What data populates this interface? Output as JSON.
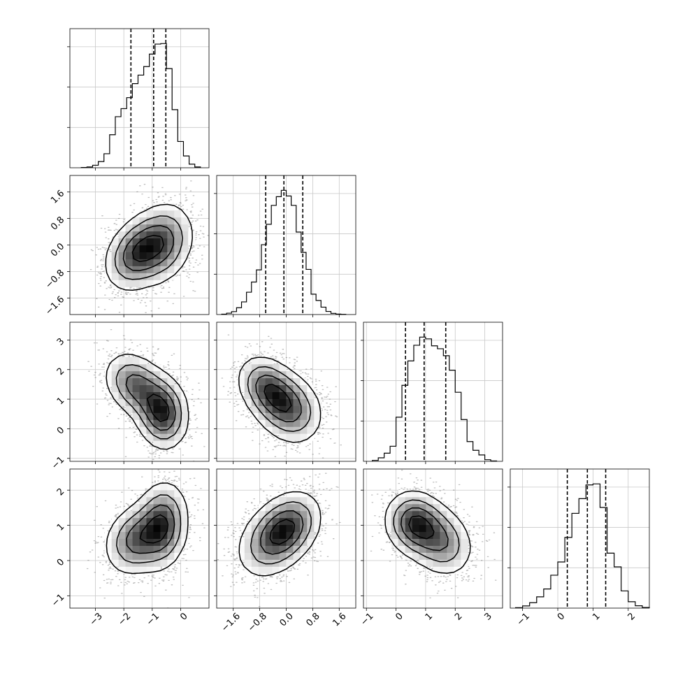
{
  "chart_data": {
    "type": "corner",
    "variables": 4,
    "grid": true,
    "quantiles": [
      0.16,
      0.5,
      0.84
    ],
    "axes_ranges": [
      [
        -3.9,
        1.0
      ],
      [
        -2.1,
        2.1
      ],
      [
        -1.1,
        3.6
      ],
      [
        -1.35,
        2.6
      ]
    ],
    "tick_values": [
      [
        -3,
        -2,
        -1,
        0
      ],
      [
        -1.6,
        -0.8,
        0.0,
        0.8,
        1.6
      ],
      [
        -1,
        0,
        1,
        2,
        3
      ],
      [
        -1,
        0,
        1,
        2
      ]
    ],
    "tick_labels": [
      [
        "−3",
        "−2",
        "−1",
        "0"
      ],
      [
        "−1.6",
        "−0.8",
        "0.0",
        "0.8",
        "1.6"
      ],
      [
        "−1",
        "0",
        "1",
        "2",
        "3"
      ],
      [
        "−1",
        "0",
        "1",
        "2"
      ]
    ],
    "histograms": [
      {
        "var": 0,
        "bin_edges": [
          -3.5,
          -3.3,
          -3.1,
          -2.9,
          -2.7,
          -2.5,
          -2.3,
          -2.1,
          -1.9,
          -1.7,
          -1.5,
          -1.3,
          -1.1,
          -0.9,
          -0.7,
          -0.5,
          -0.3,
          -0.1,
          0.1,
          0.3,
          0.5,
          0.7
        ],
        "counts": [
          3,
          8,
          25,
          62,
          140,
          330,
          510,
          590,
          700,
          840,
          925,
          1010,
          1135,
          1235,
          1240,
          990,
          580,
          262,
          118,
          36,
          8
        ],
        "quantile_values": [
          -1.75,
          -0.95,
          -0.52
        ]
      },
      {
        "var": 1,
        "bin_edges": [
          -1.95,
          -1.8,
          -1.65,
          -1.5,
          -1.35,
          -1.2,
          -1.05,
          -0.9,
          -0.75,
          -0.6,
          -0.45,
          -0.3,
          -0.15,
          0.0,
          0.15,
          0.3,
          0.45,
          0.6,
          0.75,
          0.9,
          1.05,
          1.2,
          1.35,
          1.5,
          1.65,
          1.8
        ],
        "counts": [
          4,
          14,
          30,
          70,
          130,
          230,
          335,
          460,
          720,
          930,
          1125,
          1215,
          1280,
          1222,
          1125,
          850,
          640,
          465,
          210,
          145,
          76,
          32,
          12,
          5,
          2
        ],
        "quantile_values": [
          -0.62,
          -0.07,
          0.5
        ]
      },
      {
        "var": 2,
        "bin_edges": [
          -0.8,
          -0.6,
          -0.4,
          -0.2,
          0.0,
          0.2,
          0.4,
          0.6,
          0.8,
          1.0,
          1.2,
          1.4,
          1.6,
          1.8,
          2.0,
          2.2,
          2.4,
          2.6,
          2.8,
          3.0,
          3.2,
          3.4
        ],
        "counts": [
          8,
          30,
          70,
          130,
          380,
          655,
          865,
          1000,
          1070,
          1055,
          995,
          970,
          910,
          785,
          595,
          360,
          170,
          95,
          55,
          14,
          3
        ],
        "quantile_values": [
          0.32,
          0.95,
          1.68
        ]
      },
      {
        "var": 3,
        "bin_edges": [
          -1.2,
          -1.0,
          -0.8,
          -0.6,
          -0.4,
          -0.2,
          0.0,
          0.2,
          0.4,
          0.6,
          0.8,
          1.0,
          1.2,
          1.4,
          1.6,
          1.8,
          2.0,
          2.2,
          2.4,
          2.6
        ],
        "counts": [
          5,
          22,
          55,
          115,
          195,
          335,
          470,
          720,
          965,
          1115,
          1255,
          1265,
          1025,
          560,
          420,
          175,
          65,
          24,
          6
        ],
        "quantile_values": [
          0.27,
          0.84,
          1.36
        ]
      }
    ],
    "pairs": [
      {
        "x": 0,
        "y": 1,
        "components": [
          {
            "cx": -0.65,
            "cy": 0.05,
            "sx": 0.55,
            "sy": 0.6,
            "rho": 0.2,
            "w": 0.5
          },
          {
            "cx": -1.55,
            "cy": -0.25,
            "sx": 0.55,
            "sy": 0.55,
            "rho": 0.3,
            "w": 0.5
          }
        ]
      },
      {
        "x": 0,
        "y": 2,
        "components": [
          {
            "cx": -0.65,
            "cy": 0.55,
            "sx": 0.45,
            "sy": 0.6,
            "rho": -0.1,
            "w": 0.55
          },
          {
            "cx": -1.55,
            "cy": 1.45,
            "sx": 0.55,
            "sy": 0.55,
            "rho": -0.3,
            "w": 0.45
          }
        ]
      },
      {
        "x": 0,
        "y": 3,
        "components": [
          {
            "cx": -0.65,
            "cy": 1.0,
            "sx": 0.45,
            "sy": 0.6,
            "rho": 0.1,
            "w": 0.55
          },
          {
            "cx": -1.55,
            "cy": 0.6,
            "sx": 0.55,
            "sy": 0.5,
            "rho": 0.2,
            "w": 0.45
          }
        ]
      },
      {
        "x": 1,
        "y": 2,
        "components": [
          {
            "cx": 0.08,
            "cy": 0.7,
            "sx": 0.5,
            "sy": 0.6,
            "rho": -0.2,
            "w": 0.55
          },
          {
            "cx": -0.55,
            "cy": 1.35,
            "sx": 0.45,
            "sy": 0.55,
            "rho": -0.3,
            "w": 0.45
          }
        ]
      },
      {
        "x": 1,
        "y": 3,
        "components": [
          {
            "cx": 0.05,
            "cy": 0.95,
            "sx": 0.5,
            "sy": 0.5,
            "rho": 0.3,
            "w": 0.55
          },
          {
            "cx": -0.45,
            "cy": 0.55,
            "sx": 0.55,
            "sy": 0.55,
            "rho": 0.3,
            "w": 0.45
          }
        ]
      },
      {
        "x": 2,
        "y": 3,
        "components": [
          {
            "cx": 0.65,
            "cy": 1.05,
            "sx": 0.5,
            "sy": 0.45,
            "rho": -0.1,
            "w": 0.55
          },
          {
            "cx": 1.5,
            "cy": 0.55,
            "sx": 0.55,
            "sy": 0.5,
            "rho": -0.2,
            "w": 0.45
          }
        ]
      }
    ]
  }
}
